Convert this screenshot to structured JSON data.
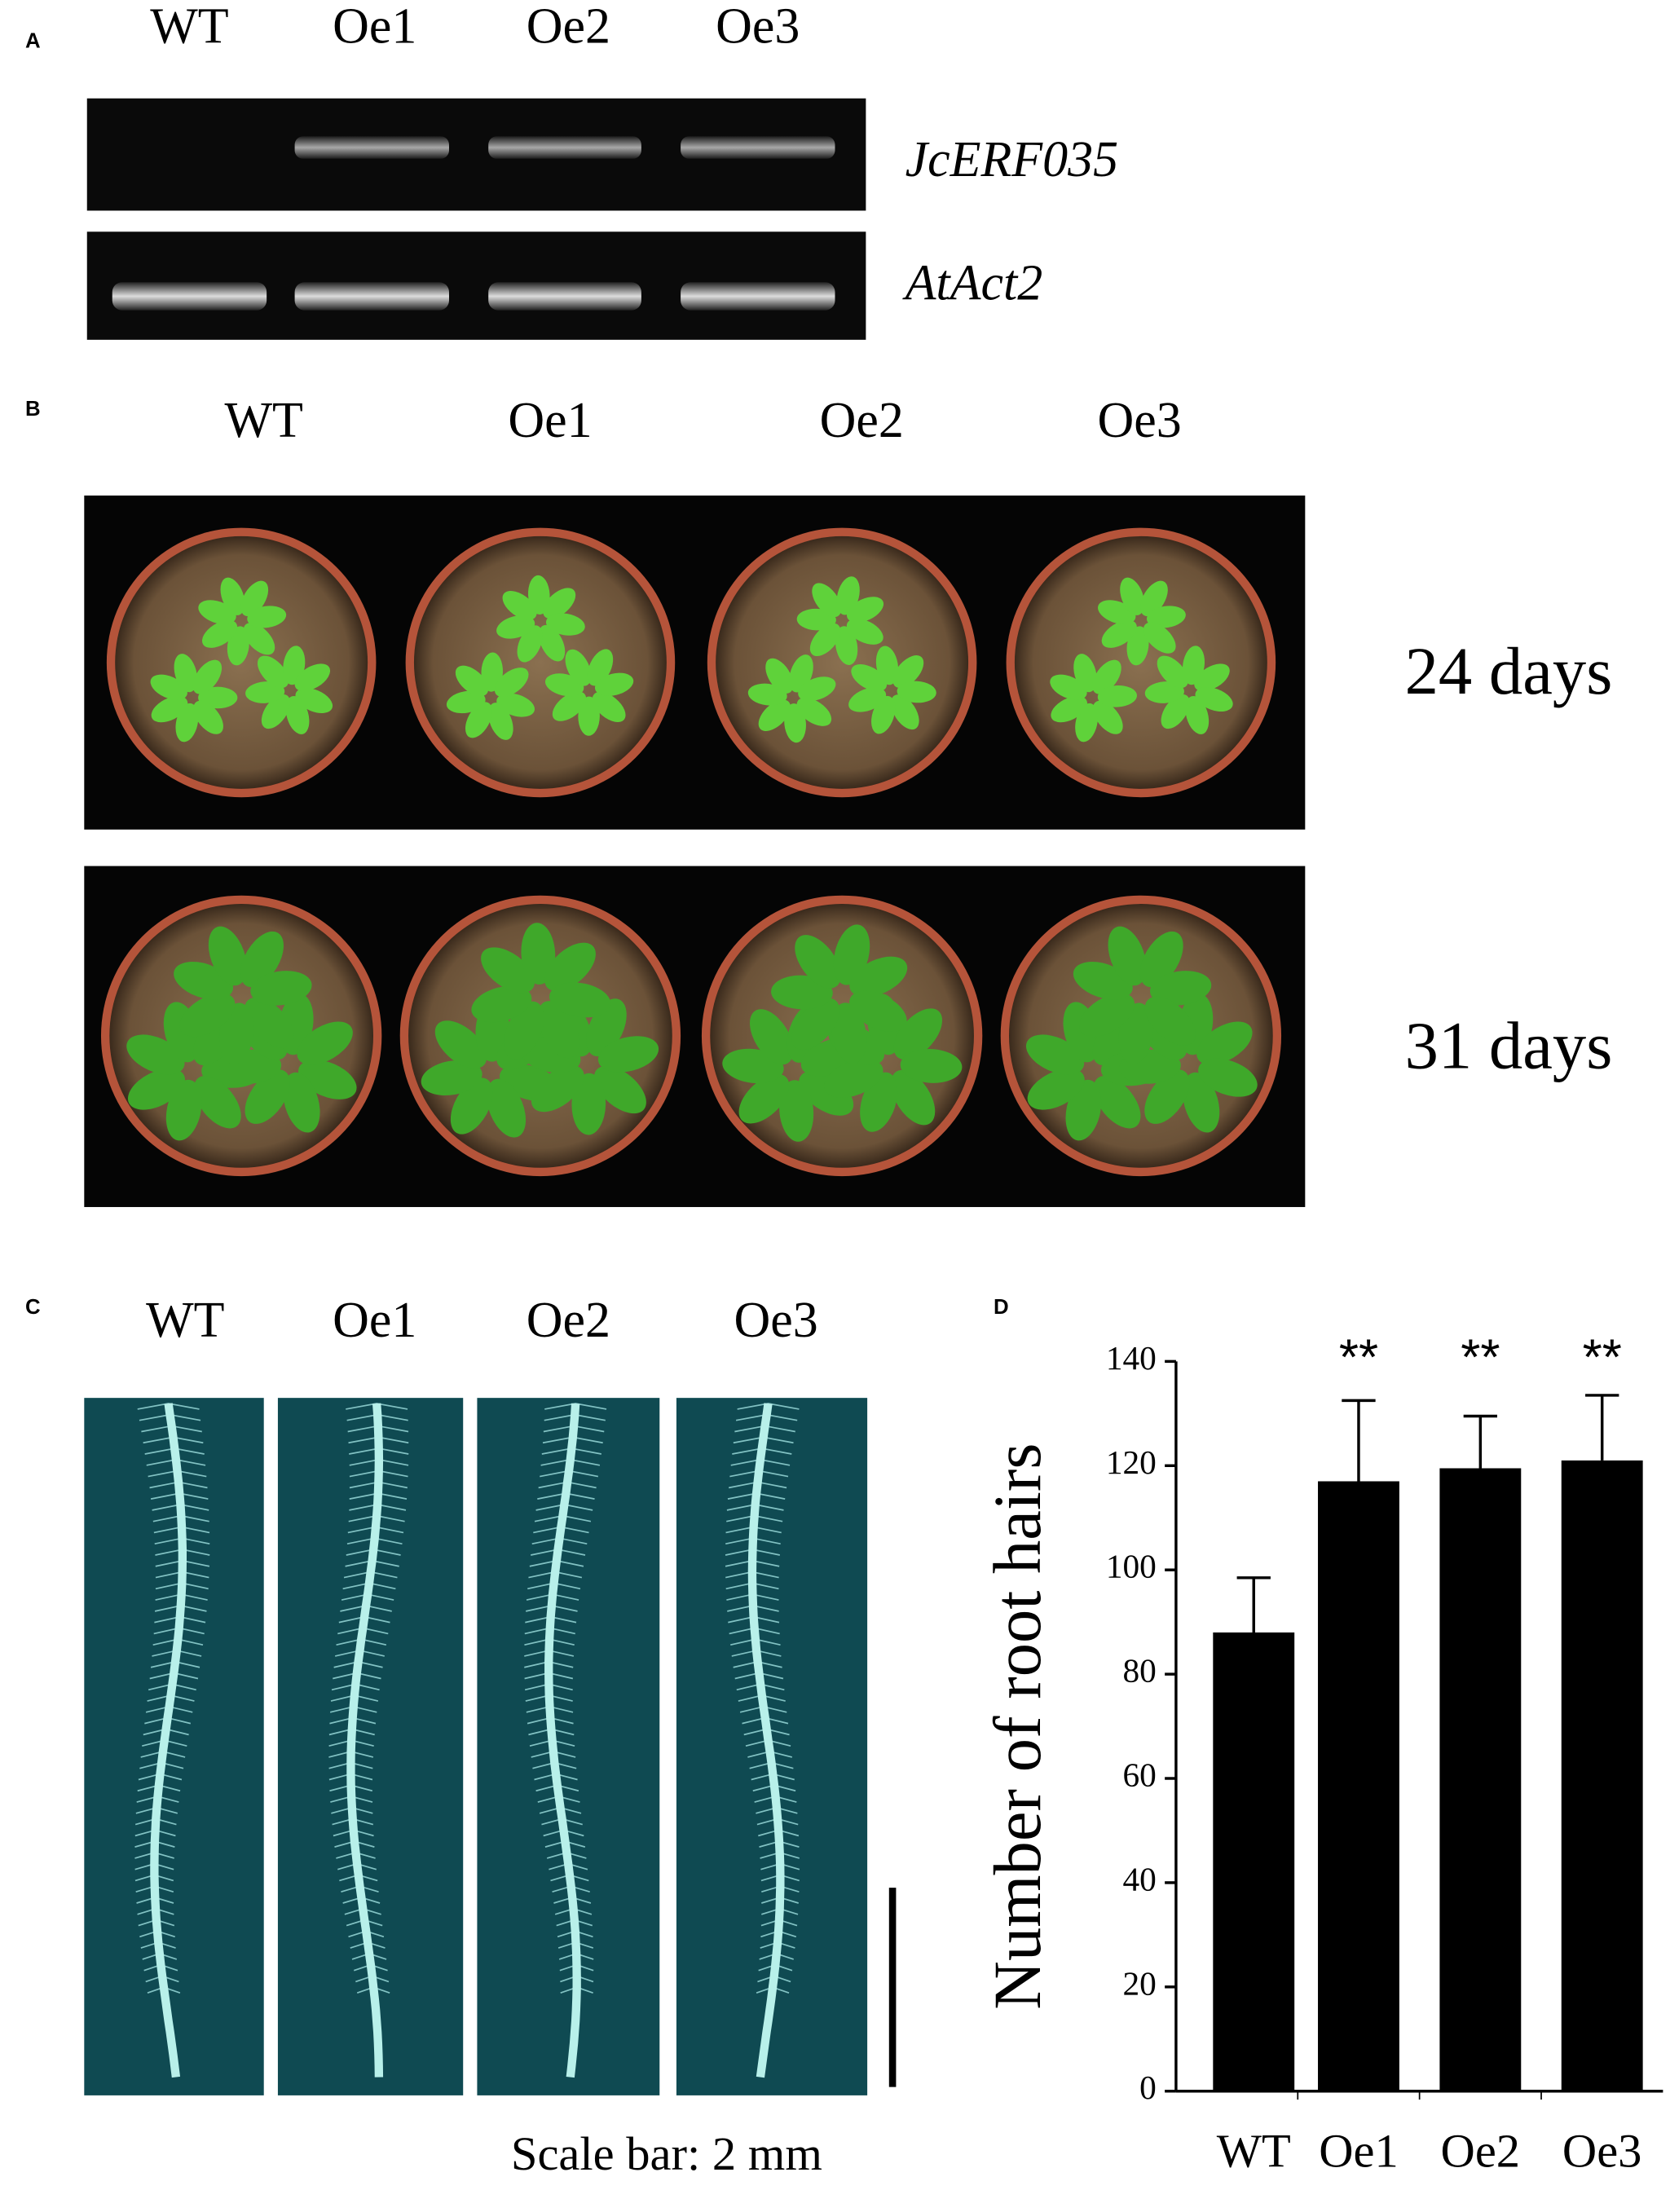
{
  "panels": [
    {
      "label": "A",
      "lanes": [
        "WT",
        "Oe1",
        "Oe2",
        "Oe3"
      ],
      "genes": [
        "JcERF035",
        "AtAct2"
      ]
    },
    {
      "label": "B",
      "lanes": [
        "WT",
        "Oe1",
        "Oe2",
        "Oe3"
      ],
      "timepoints": [
        "24 days",
        "31 days"
      ]
    },
    {
      "label": "C",
      "lanes": [
        "WT",
        "Oe1",
        "Oe2",
        "Oe3"
      ],
      "scale_bar": "Scale bar: 2 mm"
    },
    {
      "label": "D"
    }
  ],
  "chart_data": {
    "type": "bar",
    "ylabel": "Number of root hairs",
    "categories": [
      "WT",
      "Oe1",
      "Oe2",
      "Oe3"
    ],
    "values": [
      88,
      117,
      119.5,
      121
    ],
    "errors": [
      10.5,
      15.5,
      10,
      12.5
    ],
    "significance": [
      null,
      "**",
      "**",
      "**"
    ],
    "color": "#000000",
    "ylim": [
      0,
      140
    ],
    "yticks": [
      0,
      20,
      40,
      60,
      80,
      100,
      120,
      140
    ]
  }
}
